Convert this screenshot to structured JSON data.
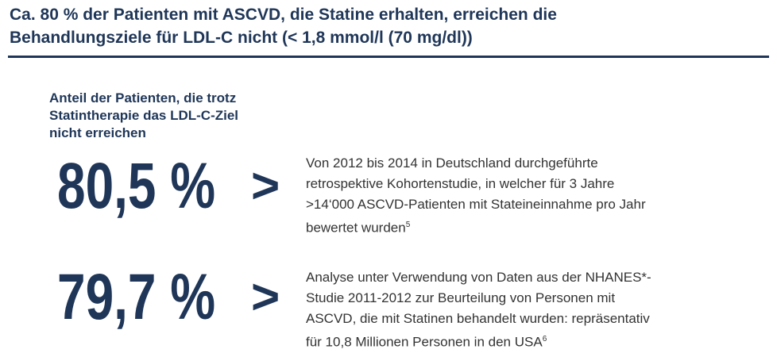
{
  "header": {
    "title_line1": "Ca. 80 % der Patienten mit ASCVD, die Statine erhalten, erreichen die",
    "title_line2": "Behandlungsziele für LDL-C nicht (< 1,8 mmol/l (70 mg/dl))"
  },
  "subheading": {
    "lines": [
      "Anteil der Patienten, die trotz",
      "Statintherapie das LDL-C-Ziel",
      "nicht erreichen"
    ]
  },
  "items": [
    {
      "value": "80,5 %",
      "arrow": ">",
      "lines": [
        "Von 2012 bis 2014 in Deutschland durchgeführte",
        "retrospektive Kohortenstudie, in welcher für 3 Jahre",
        ">14‘000 ASCVD-Patienten mit Stateineinnahme pro Jahr",
        "bewertet wurden"
      ],
      "footnote": "5"
    },
    {
      "value": "79,7 %",
      "arrow": ">",
      "lines": [
        "Analyse unter Verwendung von Daten aus der NHANES*-",
        "Studie 2011-2012 zur Beurteilung von Personen mit",
        "ASCVD, die mit Statinen behandelt wurden: repräsentativ",
        "für 10,8 Millionen Personen in den USA"
      ],
      "footnote": "6"
    }
  ]
}
